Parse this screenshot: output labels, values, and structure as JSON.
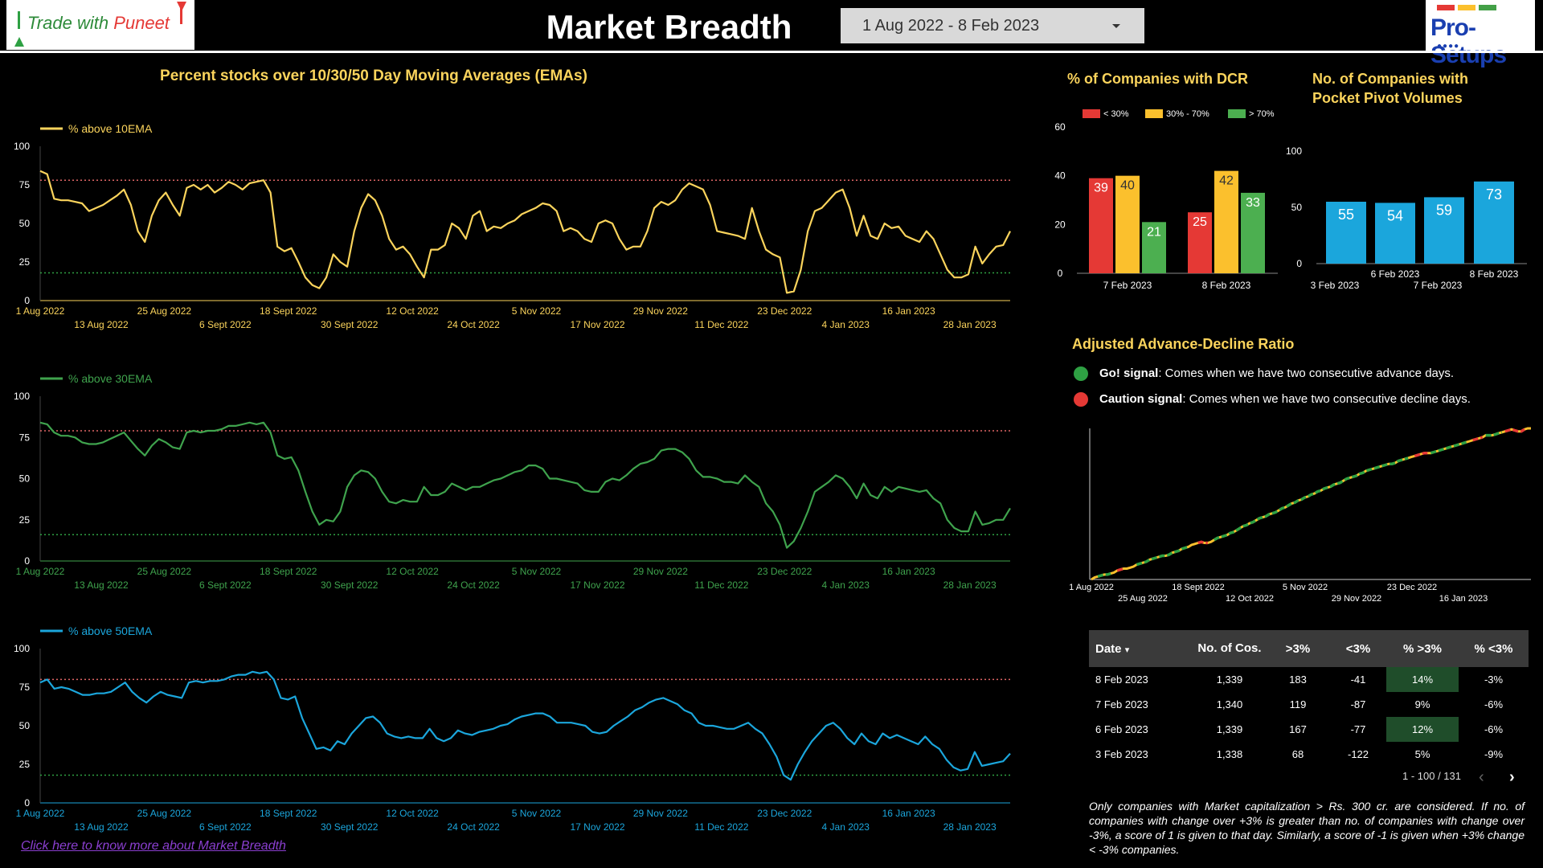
{
  "header": {
    "left_logo_text": "Trade with ",
    "left_logo_text_red": "Puneet",
    "title": "Market Breadth",
    "date_range": "1 Aug 2022 - 8 Feb 2023",
    "right_logo_text": "Pro-Setups",
    "right_logo_dots": "●●●●",
    "right_logo_bar_colors": [
      "#e53935",
      "#fbc02d",
      "#43a047"
    ]
  },
  "colors": {
    "ema10": "#fbd45c",
    "ema30": "#3fa34d",
    "ema50": "#1ba6dc",
    "upper_ref": "#e06666",
    "lower_ref": "#2ea043"
  },
  "ema_section": {
    "title": "Percent stocks over 10/30/50 Day Moving Averages (EMAs)",
    "link_text": "Click here to know more about Market Breadth"
  },
  "dcr_section": {
    "title": "% of Companies with DCR"
  },
  "pocket_section": {
    "title_line1": "No. of Companies with",
    "title_line2": "Pocket Pivot Volumes"
  },
  "adr_section": {
    "title": "Adjusted Advance-Decline Ratio",
    "go_label": "Go! signal",
    "go_text": ": Comes when we have two consecutive advance days.",
    "caution_label": "Caution signal",
    "caution_text": ": Comes when we have two consecutive decline days.",
    "go_color": "#2ea043",
    "caution_color": "#e53935"
  },
  "table": {
    "headers": [
      "Date",
      "No. of Cos.",
      ">3%",
      "<3%",
      "% >3%",
      "% <3%"
    ],
    "sort_indicator": "▾",
    "rows": [
      [
        "8 Feb 2023",
        "1,339",
        "183",
        "-41",
        "14%",
        "-3%"
      ],
      [
        "7 Feb 2023",
        "1,340",
        "119",
        "-87",
        "9%",
        "-6%"
      ],
      [
        "6 Feb 2023",
        "1,339",
        "167",
        "-77",
        "12%",
        "-6%"
      ],
      [
        "3 Feb 2023",
        "1,338",
        "68",
        "-122",
        "5%",
        "-9%"
      ]
    ],
    "highlight_rows": [
      0,
      2
    ],
    "pager": "1 - 100 / 131",
    "prev_icon": "‹",
    "next_icon": "›"
  },
  "footnote": "Only companies with Market capitalization > Rs. 300 cr. are considered. If no. of companies with change over +3% is greater than no. of companies with change over -3%, a score of 1 is given to that day. Similarly, a score of -1 is given when +3% change < -3% companies.",
  "chart_data": [
    {
      "type": "line",
      "series": [
        {
          "name": "% above 10EMA",
          "values": [
            84,
            82,
            66,
            65,
            65,
            64,
            63,
            58,
            60,
            62,
            65,
            68,
            72,
            62,
            45,
            38,
            55,
            65,
            70,
            62,
            55,
            73,
            75,
            72,
            75,
            70,
            73,
            77,
            75,
            72,
            76,
            77,
            78,
            70,
            35,
            32,
            34,
            25,
            15,
            10,
            8,
            15,
            30,
            25,
            22,
            45,
            60,
            69,
            65,
            55,
            40,
            33,
            35,
            30,
            22,
            15,
            33,
            33,
            36,
            50,
            47,
            40,
            55,
            58,
            45,
            48,
            47,
            50,
            52,
            56,
            58,
            60,
            63,
            62,
            58,
            45,
            47,
            45,
            40,
            38,
            50,
            52,
            50,
            40,
            33,
            35,
            35,
            45,
            60,
            64,
            62,
            65,
            72,
            76,
            74,
            72,
            62,
            45,
            44,
            43,
            42,
            40,
            60,
            45,
            33,
            30,
            28,
            5,
            6,
            20,
            45,
            58,
            60,
            65,
            70,
            72,
            60,
            42,
            55,
            42,
            40,
            50,
            47,
            48,
            42,
            40,
            38,
            45,
            40,
            30,
            20,
            15,
            15,
            17,
            35,
            24,
            30,
            35,
            36,
            45
          ]
        }
      ],
      "y_ticks": [
        "100",
        "75",
        "50",
        "25",
        "0"
      ],
      "ylim": [
        0,
        100
      ],
      "ref_lines": [
        78,
        18
      ],
      "x_labels_top": [
        "1 Aug 2022",
        "25 Aug 2022",
        "18 Sept 2022",
        "12 Oct 2022",
        "5 Nov 2022",
        "29 Nov 2022",
        "23 Dec 2022",
        "16 Jan 2023"
      ],
      "x_labels_bottom": [
        "13 Aug 2022",
        "6 Sept 2022",
        "30 Sept 2022",
        "24 Oct 2022",
        "17 Nov 2022",
        "11 Dec 2022",
        "4 Jan 2023",
        "28 Jan 2023"
      ]
    },
    {
      "type": "line",
      "series": [
        {
          "name": "% above 30EMA",
          "values": [
            84,
            83,
            78,
            76,
            76,
            75,
            72,
            71,
            71,
            72,
            74,
            76,
            78,
            73,
            68,
            64,
            70,
            74,
            72,
            69,
            68,
            78,
            79,
            78,
            79,
            79,
            80,
            82,
            82,
            83,
            84,
            83,
            84,
            78,
            64,
            62,
            63,
            55,
            42,
            30,
            22,
            25,
            24,
            30,
            45,
            52,
            55,
            54,
            50,
            42,
            36,
            35,
            37,
            36,
            36,
            45,
            40,
            40,
            42,
            47,
            45,
            43,
            45,
            45,
            47,
            49,
            50,
            52,
            54,
            55,
            58,
            58,
            56,
            50,
            50,
            49,
            48,
            47,
            43,
            42,
            42,
            48,
            50,
            49,
            52,
            56,
            59,
            60,
            62,
            67,
            68,
            68,
            66,
            62,
            55,
            51,
            51,
            50,
            48,
            48,
            47,
            52,
            48,
            45,
            35,
            30,
            22,
            8,
            12,
            20,
            30,
            42,
            45,
            48,
            52,
            50,
            45,
            38,
            47,
            40,
            38,
            45,
            42,
            45,
            44,
            43,
            42,
            43,
            38,
            35,
            25,
            20,
            18,
            18,
            30,
            22,
            23,
            25,
            25,
            32
          ]
        }
      ],
      "y_ticks": [
        "100",
        "75",
        "50",
        "25",
        "0"
      ],
      "ylim": [
        0,
        100
      ],
      "ref_lines": [
        79,
        16
      ],
      "x_labels_top": [
        "1 Aug 2022",
        "25 Aug 2022",
        "18 Sept 2022",
        "12 Oct 2022",
        "5 Nov 2022",
        "29 Nov 2022",
        "23 Dec 2022",
        "16 Jan 2023"
      ],
      "x_labels_bottom": [
        "13 Aug 2022",
        "6 Sept 2022",
        "30 Sept 2022",
        "24 Oct 2022",
        "17 Nov 2022",
        "11 Dec 2022",
        "4 Jan 2023",
        "28 Jan 2023"
      ]
    },
    {
      "type": "line",
      "series": [
        {
          "name": "% above 50EMA",
          "values": [
            78,
            80,
            74,
            75,
            74,
            72,
            70,
            70,
            71,
            71,
            72,
            75,
            78,
            72,
            68,
            65,
            69,
            72,
            70,
            69,
            68,
            78,
            79,
            78,
            79,
            79,
            80,
            82,
            83,
            83,
            85,
            84,
            85,
            80,
            68,
            67,
            69,
            55,
            45,
            35,
            36,
            34,
            40,
            38,
            45,
            50,
            55,
            56,
            52,
            45,
            43,
            42,
            43,
            42,
            42,
            48,
            42,
            40,
            42,
            47,
            45,
            44,
            46,
            47,
            48,
            50,
            51,
            54,
            56,
            57,
            58,
            58,
            56,
            52,
            52,
            52,
            51,
            50,
            46,
            45,
            46,
            50,
            53,
            56,
            60,
            62,
            65,
            67,
            68,
            66,
            64,
            60,
            58,
            52,
            50,
            50,
            49,
            48,
            48,
            50,
            52,
            48,
            45,
            38,
            30,
            18,
            15,
            25,
            33,
            40,
            45,
            50,
            52,
            48,
            42,
            38,
            45,
            40,
            38,
            45,
            42,
            44,
            42,
            40,
            38,
            43,
            38,
            35,
            28,
            23,
            21,
            22,
            33,
            24,
            25,
            26,
            27,
            32
          ]
        }
      ],
      "y_ticks": [
        "100",
        "75",
        "50",
        "25",
        "0"
      ],
      "ylim": [
        0,
        100
      ],
      "ref_lines": [
        80,
        18
      ],
      "x_labels_top": [
        "1 Aug 2022",
        "25 Aug 2022",
        "18 Sept 2022",
        "12 Oct 2022",
        "5 Nov 2022",
        "29 Nov 2022",
        "23 Dec 2022",
        "16 Jan 2023"
      ],
      "x_labels_bottom": [
        "13 Aug 2022",
        "6 Sept 2022",
        "30 Sept 2022",
        "24 Oct 2022",
        "17 Nov 2022",
        "11 Dec 2022",
        "4 Jan 2023",
        "28 Jan 2023"
      ]
    },
    {
      "type": "bar",
      "categories": [
        "7 Feb 2023",
        "8 Feb 2023"
      ],
      "series": [
        {
          "name": "< 30%",
          "values": [
            39,
            25
          ],
          "color": "#e53935"
        },
        {
          "name": "30% - 70%",
          "values": [
            40,
            42
          ],
          "color": "#fbc02d"
        },
        {
          "name": "> 70%",
          "values": [
            21,
            33
          ],
          "color": "#4caf50"
        }
      ],
      "y_ticks": [
        "60",
        "40",
        "20",
        "0"
      ],
      "ylim": [
        0,
        60
      ]
    },
    {
      "type": "bar",
      "categories": [
        "3 Feb 2023",
        "6 Feb 2023",
        "7 Feb 2023",
        "8 Feb 2023"
      ],
      "values": [
        55,
        54,
        59,
        73
      ],
      "color": "#1ba6dc",
      "y_ticks": [
        "100",
        "50",
        "0"
      ],
      "ylim": [
        0,
        100
      ]
    },
    {
      "type": "line",
      "series": [
        {
          "name": "Adjusted Advance-Decline Ratio",
          "values": [
            0,
            2,
            3,
            4,
            5,
            5,
            6,
            7,
            9,
            10,
            11,
            11,
            12,
            13,
            15,
            16,
            17,
            18,
            20,
            21,
            22,
            23,
            24,
            24,
            25,
            27,
            28,
            29,
            31,
            32,
            33,
            35,
            36,
            37,
            38,
            37,
            37,
            38,
            40,
            42,
            43,
            44,
            45,
            47,
            48,
            50,
            52,
            54,
            55,
            57,
            58,
            60,
            62,
            63,
            64,
            66,
            67,
            68,
            70,
            72,
            73,
            75,
            77,
            78,
            80,
            81,
            83,
            84,
            86,
            87,
            89,
            90,
            92,
            93,
            94,
            96,
            97,
            98,
            100,
            102,
            103,
            104,
            105,
            107,
            108,
            110,
            111,
            112,
            113,
            114,
            115,
            116,
            117,
            117,
            118,
            120,
            121,
            122,
            123,
            124,
            125,
            126,
            127,
            128,
            128,
            128,
            129,
            130,
            131,
            132,
            133,
            134,
            135,
            136,
            137,
            138,
            139,
            140,
            141,
            142,
            143,
            144,
            146,
            146,
            146,
            147,
            148,
            149,
            150,
            151,
            152,
            151,
            150,
            150,
            152,
            153,
            153
          ]
        }
      ],
      "signal_segments": {
        "caution_ranges": [
          [
            8,
            10
          ],
          [
            33,
            36
          ],
          [
            100,
            104
          ],
          [
            118,
            121
          ],
          [
            128,
            134
          ]
        ],
        "go_ranges": [
          [
            2,
            6
          ],
          [
            14,
            30
          ],
          [
            38,
            98
          ],
          [
            105,
            116
          ],
          [
            122,
            127
          ]
        ]
      },
      "x_labels_top": [
        "1 Aug 2022",
        "18 Sept 2022",
        "5 Nov 2022",
        "23 Dec 2022"
      ],
      "x_labels_bottom": [
        "25 Aug 2022",
        "12 Oct 2022",
        "29 Nov 2022",
        "16 Jan 2023"
      ]
    }
  ]
}
